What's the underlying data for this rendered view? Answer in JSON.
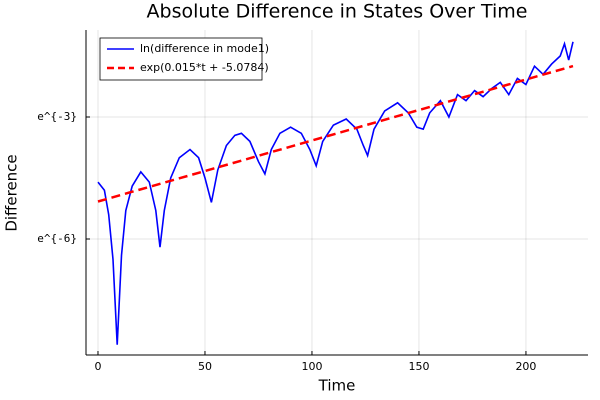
{
  "chart_data": {
    "type": "line",
    "title": "Absolute Difference in States Over Time",
    "xlabel": "Time",
    "ylabel": "Difference",
    "xlim": [
      -5.6,
      229
    ],
    "xticks": [
      0,
      50,
      100,
      150,
      200
    ],
    "ylim": [
      0.000143,
      0.423
    ],
    "ylog": true,
    "yticks": [
      {
        "value": 0.049787,
        "label": "e^{-3}"
      },
      {
        "value": 0.0024788,
        "label": "e^{-6}"
      }
    ],
    "grid": true,
    "legend": "top left",
    "series": [
      {
        "name": "ln(difference in mode1)",
        "color": "#0000ff",
        "style": "solid",
        "x": [
          0,
          3,
          5,
          7,
          9,
          11,
          13,
          16,
          20,
          24,
          27,
          29,
          31,
          34,
          38,
          43,
          47,
          50,
          53,
          56,
          60,
          64,
          67,
          71,
          75,
          78,
          81,
          85,
          90,
          95,
          99,
          102,
          105,
          110,
          116,
          121,
          124,
          126,
          129,
          134,
          140,
          145,
          149,
          152,
          155,
          160,
          164,
          168,
          172,
          176,
          180,
          184,
          188,
          192,
          196,
          200,
          204,
          208,
          212,
          216,
          218,
          220,
          222
        ],
        "values": [
          0.01005,
          0.00823,
          0.00452,
          0.0015,
          0.000184,
          0.00166,
          0.00499,
          0.0091,
          0.01291,
          0.01005,
          0.00499,
          0.00203,
          0.00499,
          0.01111,
          0.01832,
          0.02237,
          0.01832,
          0.01111,
          0.0061,
          0.01357,
          0.02472,
          0.03175,
          0.03337,
          0.02732,
          0.01657,
          0.01228,
          0.02237,
          0.03337,
          0.03877,
          0.03337,
          0.02237,
          0.015,
          0.02732,
          0.04076,
          0.04736,
          0.03688,
          0.02472,
          0.01925,
          0.03688,
          0.05784,
          0.07065,
          0.05502,
          0.03877,
          0.03688,
          0.05502,
          0.07427,
          0.04979,
          0.08629,
          0.07427,
          0.09537,
          0.08208,
          0.10026,
          0.11648,
          0.08629,
          0.12873,
          0.1108,
          0.17377,
          0.14227,
          0.18268,
          0.22313,
          0.30119,
          0.2019,
          0.31664
        ]
      },
      {
        "name": "exp(0.015*t + -5.0784)",
        "color": "#ff0000",
        "style": "dashed",
        "x": [
          0,
          222
        ],
        "values": [
          0.006228,
          0.17405
        ]
      }
    ]
  }
}
